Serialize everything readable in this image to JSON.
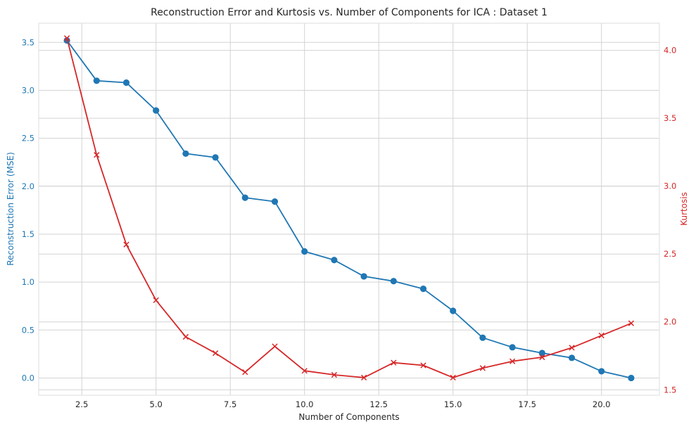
{
  "chart_data": {
    "type": "line",
    "title": "Reconstruction Error and Kurtosis vs. Number of Components for ICA :  Dataset 1",
    "xlabel": "Number of Components",
    "ylabel_left": "Reconstruction Error (MSE)",
    "ylabel_right": "Kurtosis",
    "xlim": [
      1.05,
      21.95
    ],
    "ylim_left": [
      -0.18,
      3.7
    ],
    "ylim_right": [
      1.46,
      4.2
    ],
    "xticks": [
      2.5,
      5.0,
      7.5,
      10.0,
      12.5,
      15.0,
      17.5,
      20.0
    ],
    "xtick_labels": [
      "2.5",
      "5.0",
      "7.5",
      "10.0",
      "12.5",
      "15.0",
      "17.5",
      "20.0"
    ],
    "yticks_left": [
      0.0,
      0.5,
      1.0,
      1.5,
      2.0,
      2.5,
      3.0,
      3.5
    ],
    "ytick_labels_left": [
      "0.0",
      "0.5",
      "1.0",
      "1.5",
      "2.0",
      "2.5",
      "3.0",
      "3.5"
    ],
    "yticks_right": [
      1.5,
      2.0,
      2.5,
      3.0,
      3.5,
      4.0
    ],
    "ytick_labels_right": [
      "1.5",
      "2.0",
      "2.5",
      "3.0",
      "3.5",
      "4.0"
    ],
    "grid": true,
    "legend": "none",
    "x": [
      2,
      3,
      4,
      5,
      6,
      7,
      8,
      9,
      10,
      11,
      12,
      13,
      14,
      15,
      16,
      17,
      18,
      19,
      20,
      21
    ],
    "series": [
      {
        "axis": "left",
        "marker": "circle",
        "color": "#1f77b4",
        "values": [
          3.52,
          3.1,
          3.08,
          2.79,
          2.34,
          2.3,
          1.88,
          1.84,
          1.32,
          1.23,
          1.06,
          1.01,
          0.93,
          0.7,
          0.42,
          0.32,
          0.26,
          0.21,
          0.07,
          0.0
        ]
      },
      {
        "axis": "right",
        "marker": "x",
        "color": "#d62728",
        "values": [
          4.09,
          3.23,
          2.57,
          2.16,
          1.89,
          1.77,
          1.63,
          1.82,
          1.64,
          1.61,
          1.59,
          1.7,
          1.68,
          1.59,
          1.66,
          1.71,
          1.74,
          1.81,
          1.9,
          1.99
        ]
      }
    ]
  }
}
